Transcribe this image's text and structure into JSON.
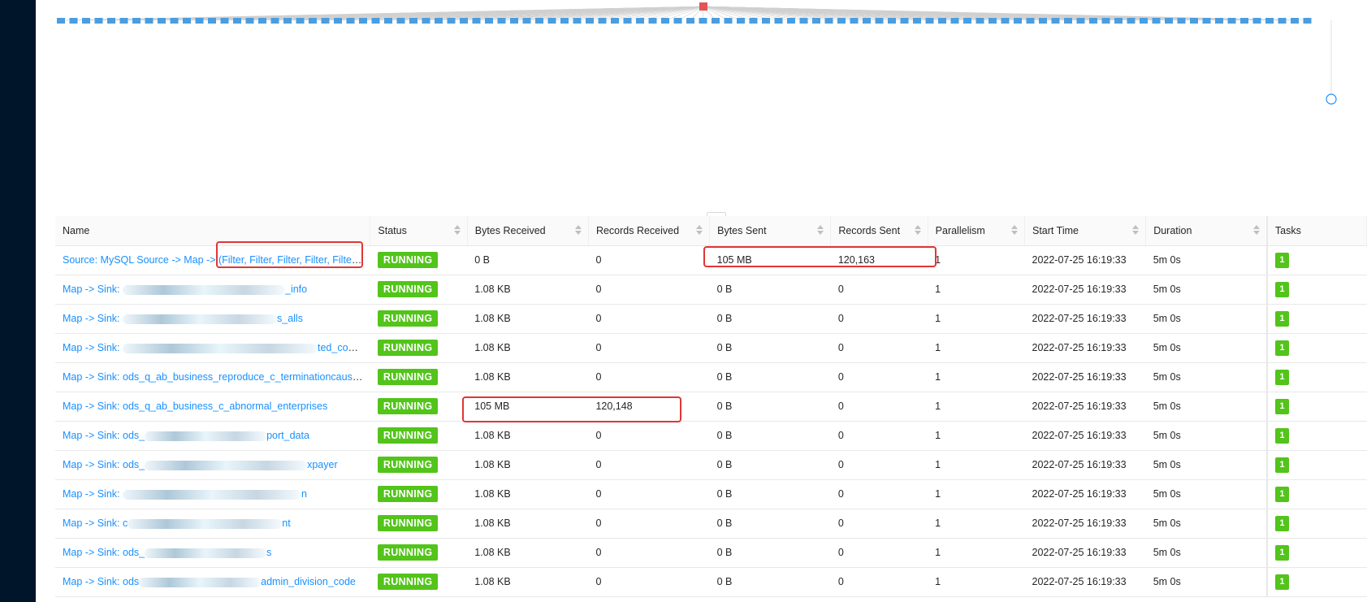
{
  "columns": [
    "Name",
    "Status",
    "Bytes Received",
    "Records Received",
    "Bytes Sent",
    "Records Sent",
    "Parallelism",
    "Start Time",
    "Duration",
    "Tasks"
  ],
  "divider_handle": "...",
  "rows": [
    {
      "name": "Source: MySQL Source -> Map -> (Filter, Filter, Filter, Filter, Filter…",
      "status": "RUNNING",
      "bytes_received": "0 B",
      "records_received": "0",
      "bytes_sent": "105 MB",
      "records_sent": "120,163",
      "parallelism": "1",
      "start_time": "2022-07-25 16:19:33",
      "duration": "5m 0s",
      "tasks": "1"
    },
    {
      "name": "Map -> Sink: ",
      "name_tail": "_info",
      "status": "RUNNING",
      "bytes_received": "1.08 KB",
      "records_received": "0",
      "bytes_sent": "0 B",
      "records_sent": "0",
      "parallelism": "1",
      "start_time": "2022-07-25 16:19:33",
      "duration": "5m 0s",
      "tasks": "1"
    },
    {
      "name": "Map -> Sink: ",
      "name_tail": "s_alls",
      "status": "RUNNING",
      "bytes_received": "1.08 KB",
      "records_received": "0",
      "bytes_sent": "0 B",
      "records_sent": "0",
      "parallelism": "1",
      "start_time": "2022-07-25 16:19:33",
      "duration": "5m 0s",
      "tasks": "1"
    },
    {
      "name": "Map -> Sink: ",
      "name_tail": "ted_consu…",
      "status": "RUNNING",
      "bytes_received": "1.08 KB",
      "records_received": "0",
      "bytes_sent": "0 B",
      "records_sent": "0",
      "parallelism": "1",
      "start_time": "2022-07-25 16:19:33",
      "duration": "5m 0s",
      "tasks": "1"
    },
    {
      "name": "Map -> Sink: ods_q_ab_business_reproduce_c_terminationcausi…",
      "name_tail": "",
      "status": "RUNNING",
      "bytes_received": "1.08 KB",
      "records_received": "0",
      "bytes_sent": "0 B",
      "records_sent": "0",
      "parallelism": "1",
      "start_time": "2022-07-25 16:19:33",
      "duration": "5m 0s",
      "tasks": "1"
    },
    {
      "name": "Map -> Sink: ods_q_ab_business_c_abnormal_enterprises",
      "name_tail": "",
      "status": "RUNNING",
      "bytes_received": "105 MB",
      "records_received": "120,148",
      "bytes_sent": "0 B",
      "records_sent": "0",
      "parallelism": "1",
      "start_time": "2022-07-25 16:19:33",
      "duration": "5m 0s",
      "tasks": "1"
    },
    {
      "name": "Map -> Sink: ods_",
      "name_tail": "port_data",
      "status": "RUNNING",
      "bytes_received": "1.08 KB",
      "records_received": "0",
      "bytes_sent": "0 B",
      "records_sent": "0",
      "parallelism": "1",
      "start_time": "2022-07-25 16:19:33",
      "duration": "5m 0s",
      "tasks": "1"
    },
    {
      "name": "Map -> Sink: ods_",
      "name_tail": "xpayer",
      "status": "RUNNING",
      "bytes_received": "1.08 KB",
      "records_received": "0",
      "bytes_sent": "0 B",
      "records_sent": "0",
      "parallelism": "1",
      "start_time": "2022-07-25 16:19:33",
      "duration": "5m 0s",
      "tasks": "1"
    },
    {
      "name": "Map -> Sink: ",
      "name_tail": "n",
      "status": "RUNNING",
      "bytes_received": "1.08 KB",
      "records_received": "0",
      "bytes_sent": "0 B",
      "records_sent": "0",
      "parallelism": "1",
      "start_time": "2022-07-25 16:19:33",
      "duration": "5m 0s",
      "tasks": "1"
    },
    {
      "name": "Map -> Sink: c",
      "name_tail": "nt",
      "status": "RUNNING",
      "bytes_received": "1.08 KB",
      "records_received": "0",
      "bytes_sent": "0 B",
      "records_sent": "0",
      "parallelism": "1",
      "start_time": "2022-07-25 16:19:33",
      "duration": "5m 0s",
      "tasks": "1"
    },
    {
      "name": "Map -> Sink: ods_",
      "name_tail": "s",
      "status": "RUNNING",
      "bytes_received": "1.08 KB",
      "records_received": "0",
      "bytes_sent": "0 B",
      "records_sent": "0",
      "parallelism": "1",
      "start_time": "2022-07-25 16:19:33",
      "duration": "5m 0s",
      "tasks": "1"
    },
    {
      "name": "Map -> Sink: ods",
      "name_tail": "admin_division_code",
      "status": "RUNNING",
      "bytes_received": "1.08 KB",
      "records_received": "0",
      "bytes_sent": "0 B",
      "records_sent": "0",
      "parallelism": "1",
      "start_time": "2022-07-25 16:19:33",
      "duration": "5m 0s",
      "tasks": "1"
    }
  ],
  "colors": {
    "status_running": "#52c41a",
    "link": "#1890ff",
    "highlight": "#e03636",
    "node_blue": "#4a9ee0",
    "node_red": "#e05555"
  }
}
